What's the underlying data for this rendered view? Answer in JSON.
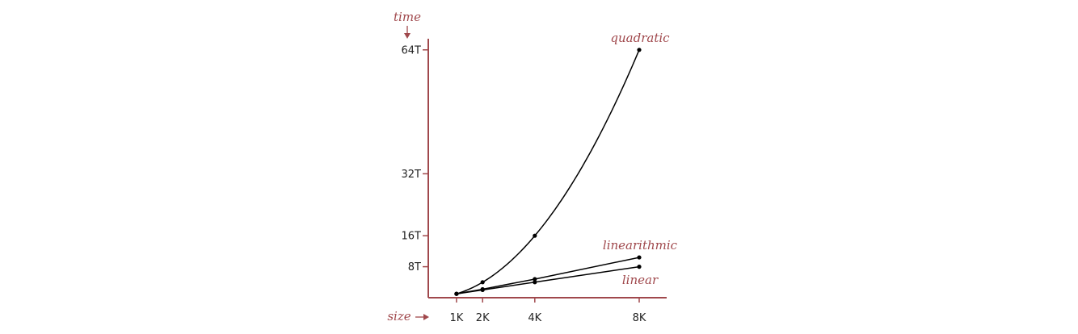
{
  "chart_data": {
    "type": "line",
    "xlabel": "size",
    "ylabel": "time",
    "x_ticks": [
      {
        "value": 1,
        "label": "1K"
      },
      {
        "value": 2,
        "label": "2K"
      },
      {
        "value": 4,
        "label": "4K"
      },
      {
        "value": 8,
        "label": "8K"
      }
    ],
    "y_ticks": [
      {
        "value": 8,
        "label": "8T"
      },
      {
        "value": 16,
        "label": "16T"
      },
      {
        "value": 32,
        "label": "32T"
      },
      {
        "value": 64,
        "label": "64T"
      }
    ],
    "xlim": [
      0.7,
      9.0
    ],
    "ylim": [
      0,
      68
    ],
    "grid": false,
    "series": [
      {
        "name": "quadratic",
        "points": [
          [
            1,
            1
          ],
          [
            2,
            4
          ],
          [
            4,
            16
          ],
          [
            8,
            64
          ]
        ]
      },
      {
        "name": "linearithmic",
        "points": [
          [
            1,
            1
          ],
          [
            2,
            2.2
          ],
          [
            4,
            4.8
          ],
          [
            8,
            10.4
          ]
        ]
      },
      {
        "name": "linear",
        "points": [
          [
            1,
            1
          ],
          [
            2,
            2
          ],
          [
            4,
            4
          ],
          [
            8,
            8
          ]
        ]
      }
    ]
  },
  "colors": {
    "axis": "#a0484c",
    "label": "#a0484c",
    "curve": "#000000",
    "tick_text": "#222222"
  }
}
